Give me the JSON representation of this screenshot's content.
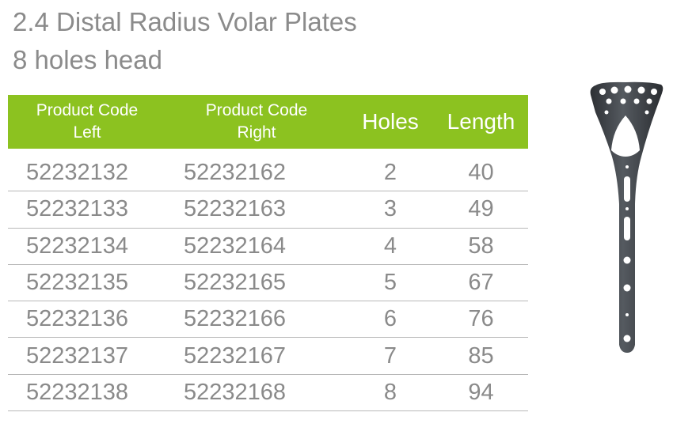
{
  "title": {
    "line1": "2.4 Distal Radius Volar Plates",
    "line2": "8 holes head"
  },
  "table": {
    "headers": {
      "left_line1": "Product Code",
      "left_line2": "Left",
      "right_line1": "Product Code",
      "right_line2": "Right",
      "holes": "Holes",
      "length": "Length"
    },
    "rows": [
      {
        "left": "52232132",
        "right": "52232162",
        "holes": "2",
        "length": "40"
      },
      {
        "left": "52232133",
        "right": "52232163",
        "holes": "3",
        "length": "49"
      },
      {
        "left": "52232134",
        "right": "52232164",
        "holes": "4",
        "length": "58"
      },
      {
        "left": "52232135",
        "right": "52232165",
        "holes": "5",
        "length": "67"
      },
      {
        "left": "52232136",
        "right": "52232166",
        "holes": "6",
        "length": "76"
      },
      {
        "left": "52232137",
        "right": "52232167",
        "holes": "7",
        "length": "85"
      },
      {
        "left": "52232138",
        "right": "52232168",
        "holes": "8",
        "length": "94"
      }
    ]
  },
  "colors": {
    "header_green": "#8cc220",
    "text_gray": "#8a8a8a",
    "plate_metal": "#3e4247"
  },
  "image": {
    "icon": "volar-plate-icon"
  }
}
